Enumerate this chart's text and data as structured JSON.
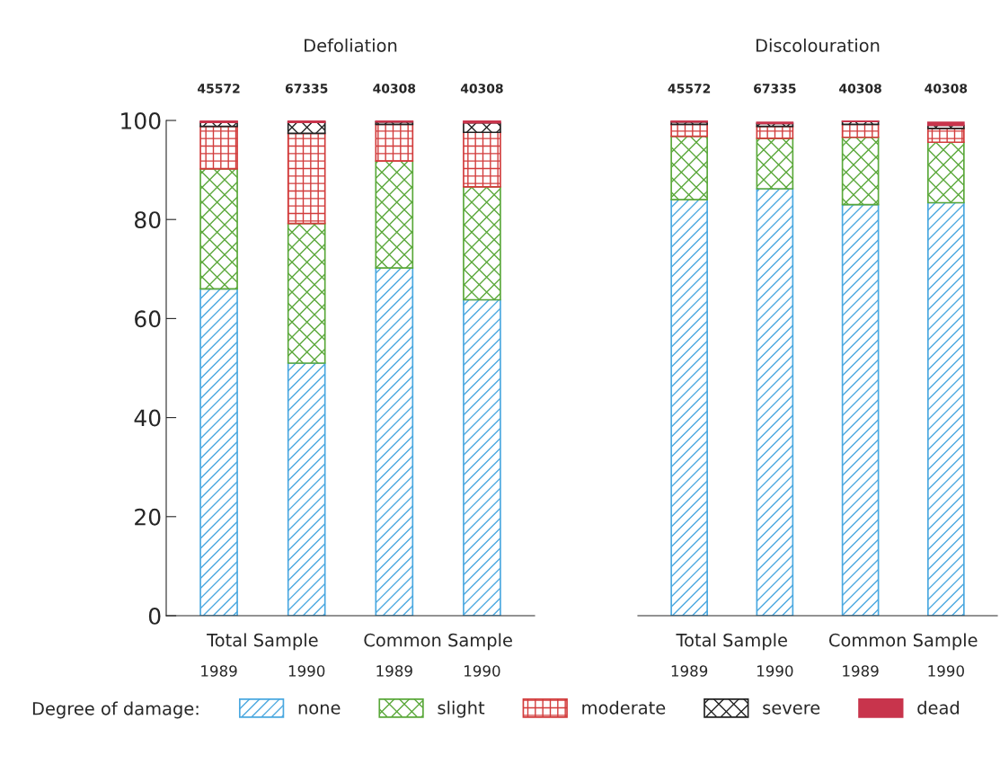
{
  "chart_data": [
    {
      "type": "bar",
      "stacked": true,
      "title": "Defoliation",
      "categories": [
        "1989",
        "1990",
        "1989",
        "1990"
      ],
      "ylim": [
        0,
        100
      ],
      "yticks": [
        0,
        20,
        40,
        60,
        80,
        100
      ],
      "annotations": [
        "45572",
        "67335",
        "40308",
        "40308",
        "Total Sample",
        "Common Sample"
      ],
      "legend": "bottom",
      "legend_title": "Degree of damage:",
      "grid": false,
      "series": [
        {
          "name": "none",
          "color": "#4aa8e0",
          "values": [
            66,
            51,
            70.2,
            63.8
          ]
        },
        {
          "name": "slight",
          "color": "#5aa83a",
          "values": [
            24.2,
            28.2,
            21.6,
            22.8
          ]
        },
        {
          "name": "moderate",
          "color": "#d23c3c",
          "values": [
            8.6,
            18.2,
            7.4,
            11
          ]
        },
        {
          "name": "severe",
          "color": "#222222",
          "values": [
            0.8,
            2.2,
            0.5,
            1.9
          ]
        },
        {
          "name": "dead",
          "color": "#c8344c",
          "values": [
            0.4,
            0.4,
            0.3,
            0.5
          ]
        }
      ]
    },
    {
      "type": "bar",
      "stacked": true,
      "title": "Discolouration",
      "categories": [
        "1989",
        "1990",
        "1989",
        "1990"
      ],
      "ylim": [
        0,
        100
      ],
      "tick_labels": "x",
      "annotations": [
        "45572",
        "67335",
        "40308",
        "40308",
        "Total Sample",
        "Common Sample"
      ],
      "grid": false,
      "series": [
        {
          "color": "#4aa8e0",
          "values": [
            84,
            86.2,
            83,
            83.4
          ]
        },
        {
          "color": "#5aa83a",
          "values": [
            12.8,
            10.2,
            13.6,
            12.2
          ]
        },
        {
          "color": "#d23c3c",
          "values": [
            2.4,
            2.4,
            2.6,
            2.8
          ]
        },
        {
          "color": "#222222",
          "values": [
            0.5,
            0.6,
            0.6,
            0.6
          ]
        },
        {
          "color": "#c8344c",
          "values": [
            0.3,
            0.2,
            0.2,
            0.6
          ]
        }
      ]
    }
  ]
}
